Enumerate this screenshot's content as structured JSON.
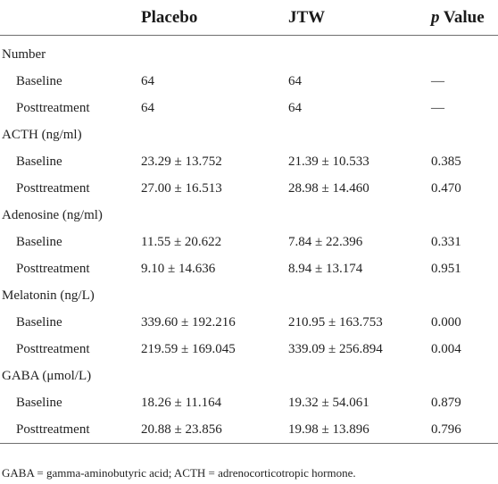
{
  "header": {
    "col1": "",
    "col2": "Placebo",
    "col3": "JTW",
    "col4_italic": "p",
    "col4_rest": " Value"
  },
  "groups": [
    {
      "label": "Number",
      "rows": [
        {
          "label": "Baseline",
          "placebo": "64",
          "jtw": "64",
          "p": "—"
        },
        {
          "label": "Posttreatment",
          "placebo": "64",
          "jtw": "64",
          "p": "—"
        }
      ]
    },
    {
      "label": "ACTH (ng/ml)",
      "rows": [
        {
          "label": "Baseline",
          "placebo": "23.29 ± 13.752",
          "jtw": "21.39 ± 10.533",
          "p": "0.385"
        },
        {
          "label": "Posttreatment",
          "placebo": "27.00 ± 16.513",
          "jtw": "28.98 ± 14.460",
          "p": "0.470"
        }
      ]
    },
    {
      "label": "Adenosine (ng/ml)",
      "rows": [
        {
          "label": "Baseline",
          "placebo": "11.55 ± 20.622",
          "jtw": "7.84 ± 22.396",
          "p": "0.331"
        },
        {
          "label": "Posttreatment",
          "placebo": "9.10 ± 14.636",
          "jtw": "8.94 ± 13.174",
          "p": "0.951"
        }
      ]
    },
    {
      "label": "Melatonin (ng/L)",
      "rows": [
        {
          "label": "Baseline",
          "placebo": "339.60 ± 192.216",
          "jtw": "210.95 ± 163.753",
          "p": "0.000"
        },
        {
          "label": "Posttreatment",
          "placebo": "219.59 ± 169.045",
          "jtw": "339.09 ± 256.894",
          "p": "0.004"
        }
      ]
    },
    {
      "label": "GABA (μmol/L)",
      "rows": [
        {
          "label": "Baseline",
          "placebo": "18.26 ± 11.164",
          "jtw": "19.32 ± 54.061",
          "p": "0.879"
        },
        {
          "label": "Posttreatment",
          "placebo": "20.88 ± 23.856",
          "jtw": "19.98 ± 13.896",
          "p": "0.796"
        }
      ]
    }
  ],
  "footnote": "GABA = gamma-aminobutyric acid; ACTH = adrenocorticotropic hormone."
}
